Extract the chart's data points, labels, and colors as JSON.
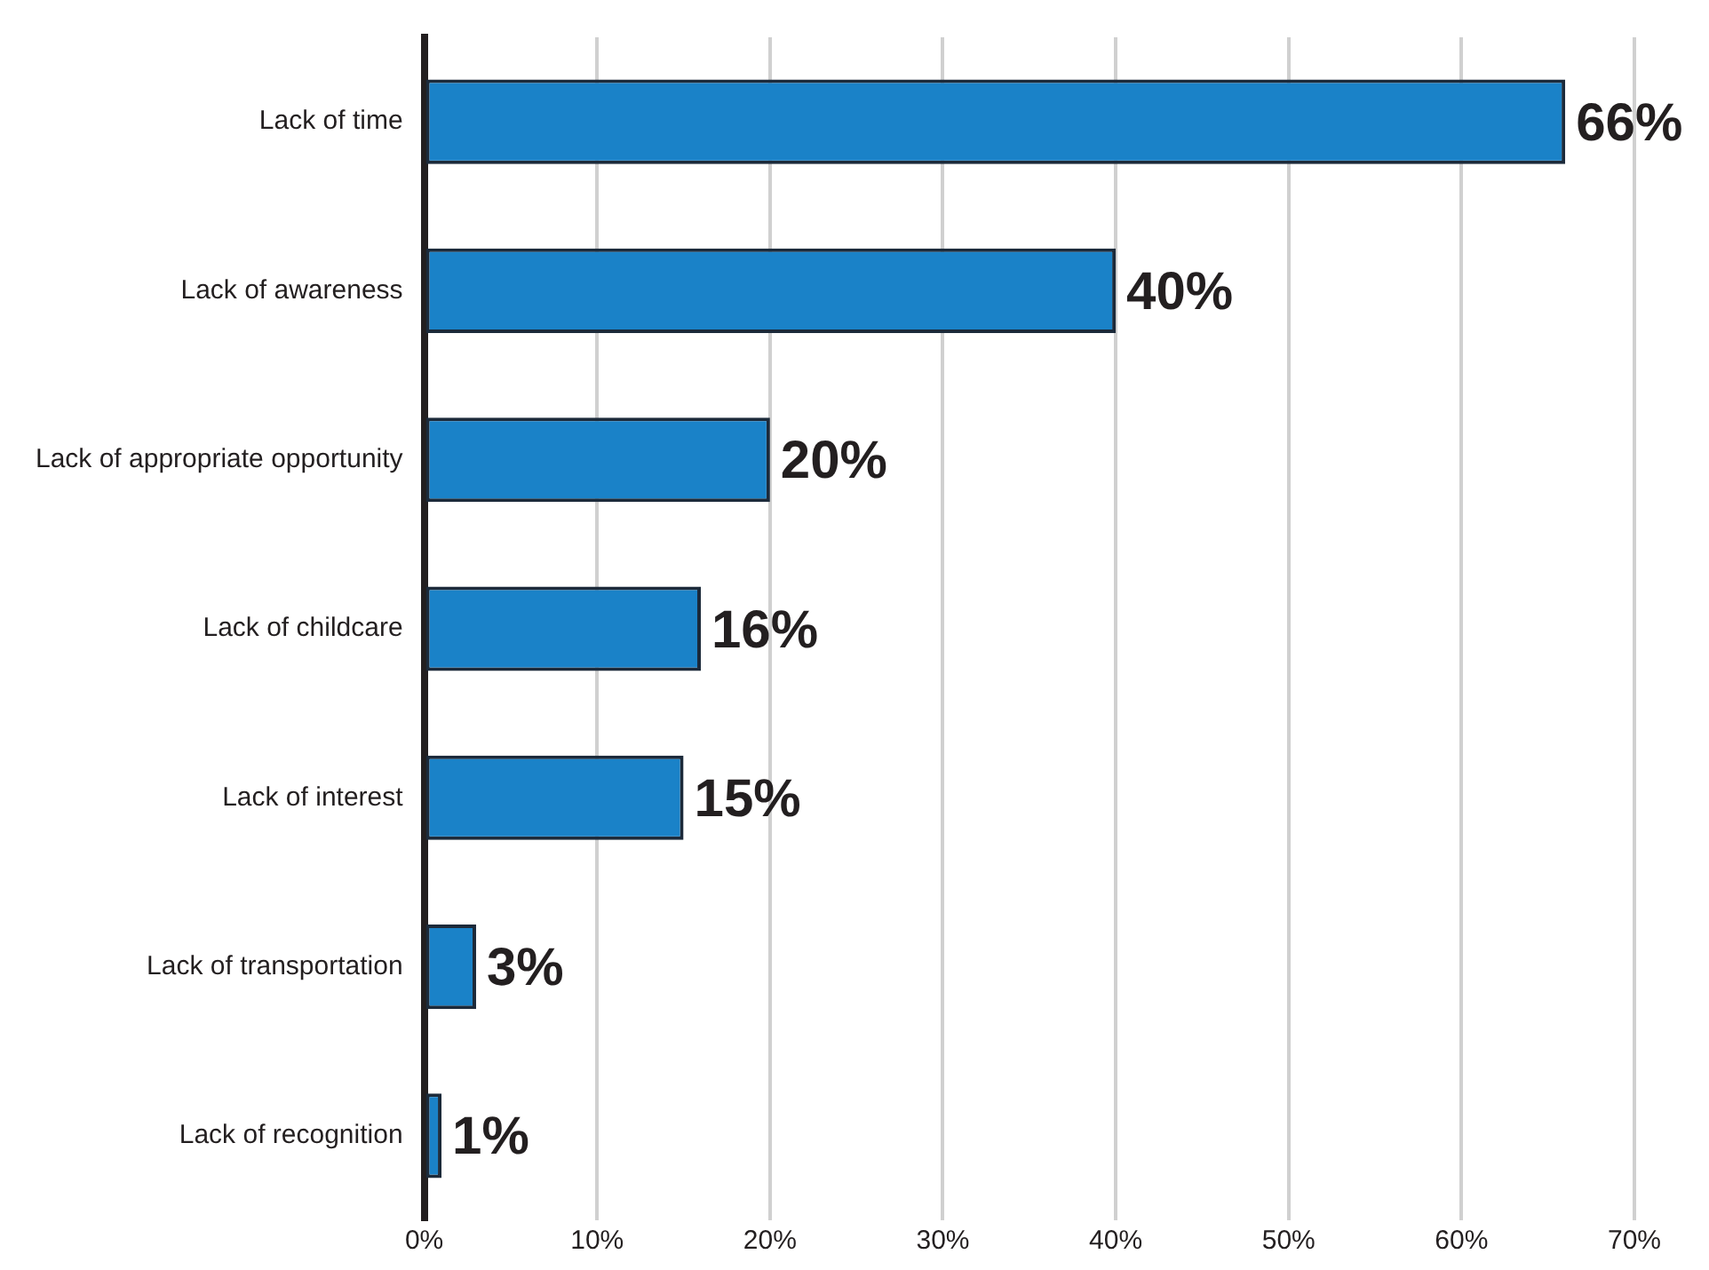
{
  "chart_data": {
    "type": "bar",
    "orientation": "horizontal",
    "categories": [
      "Lack of time",
      "Lack of awareness",
      "Lack of appropriate opportunity",
      "Lack of childcare",
      "Lack of interest",
      "Lack of transportation",
      "Lack of recognition"
    ],
    "values": [
      66,
      40,
      20,
      16,
      15,
      3,
      1
    ],
    "value_labels": [
      "66%",
      "40%",
      "20%",
      "16%",
      "15%",
      "3%",
      "1%"
    ],
    "color": "#1a82c8",
    "xlim": [
      0,
      70
    ],
    "xticks": [
      {
        "value": 0,
        "label": "0%"
      },
      {
        "value": 10,
        "label": "10%"
      },
      {
        "value": 20,
        "label": "20%"
      },
      {
        "value": 30,
        "label": "30%"
      },
      {
        "value": 40,
        "label": "40%"
      },
      {
        "value": 50,
        "label": "50%"
      },
      {
        "value": 60,
        "label": "60%"
      },
      {
        "value": 70,
        "label": "70%"
      }
    ],
    "grid": "x",
    "legend": false
  }
}
